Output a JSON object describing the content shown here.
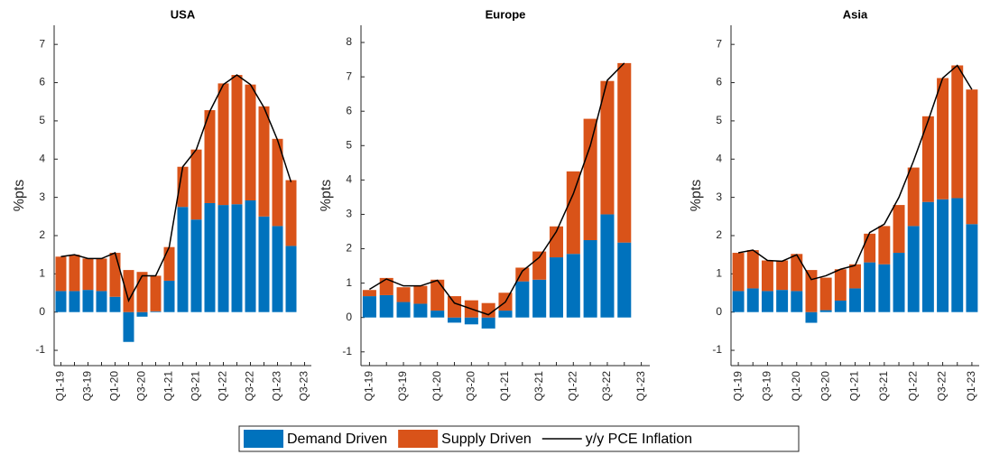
{
  "chart_data": [
    {
      "type": "bar",
      "stacked": true,
      "title": "USA",
      "y_label": "%pts",
      "categories": [
        "Q1-19",
        null,
        "Q3-19",
        null,
        "Q1-20",
        null,
        "Q3-20",
        null,
        "Q1-21",
        null,
        "Q3-21",
        null,
        "Q1-22",
        null,
        "Q3-22",
        null,
        "Q1-23",
        null,
        "Q3-23"
      ],
      "series": [
        {
          "name": "Demand Driven",
          "color": "#0072BD",
          "values": [
            0.55,
            0.55,
            0.58,
            0.55,
            0.4,
            -0.78,
            -0.12,
            0.02,
            0.82,
            2.75,
            2.42,
            2.85,
            2.8,
            2.82,
            2.92,
            2.5,
            2.25,
            1.73,
            null
          ]
        },
        {
          "name": "Supply Driven",
          "color": "#D95319",
          "values": [
            0.9,
            0.95,
            0.82,
            0.85,
            1.15,
            1.1,
            1.05,
            0.93,
            0.88,
            1.05,
            1.83,
            2.43,
            3.18,
            3.38,
            3.03,
            2.88,
            2.28,
            1.72,
            null
          ]
        },
        {
          "name": "y/y PCE Inflation",
          "color": "#000000",
          "type": "line",
          "values": [
            1.45,
            1.5,
            1.4,
            1.4,
            1.55,
            0.3,
            0.95,
            0.95,
            1.7,
            3.8,
            4.25,
            5.25,
            5.95,
            6.2,
            5.95,
            5.35,
            4.5,
            3.4,
            null
          ]
        }
      ],
      "ylim": [
        -1.4,
        7.5
      ],
      "yticks": [
        -1,
        0,
        1,
        2,
        3,
        4,
        5,
        6,
        7
      ]
    },
    {
      "type": "bar",
      "stacked": true,
      "title": "Europe",
      "y_label": "%pts",
      "categories": [
        "Q1-19",
        null,
        "Q3-19",
        null,
        "Q1-20",
        null,
        "Q3-20",
        null,
        "Q1-21",
        null,
        "Q3-21",
        null,
        "Q1-22",
        null,
        "Q3-22",
        null,
        "Q1-23"
      ],
      "series": [
        {
          "name": "Demand Driven",
          "color": "#0072BD",
          "values": [
            0.62,
            0.65,
            0.45,
            0.4,
            0.2,
            -0.15,
            -0.2,
            -0.32,
            0.2,
            1.05,
            1.1,
            1.75,
            1.85,
            2.25,
            3.0,
            2.18,
            null
          ]
        },
        {
          "name": "Supply Driven",
          "color": "#D95319",
          "values": [
            0.18,
            0.5,
            0.43,
            0.52,
            0.9,
            0.62,
            0.5,
            0.42,
            0.52,
            0.4,
            0.82,
            0.9,
            2.4,
            3.53,
            3.88,
            5.22,
            null
          ]
        },
        {
          "name": "y/y PCE Inflation",
          "color": "#000000",
          "type": "line",
          "values": [
            0.82,
            1.12,
            0.92,
            0.92,
            1.08,
            0.42,
            0.25,
            0.08,
            0.45,
            1.35,
            1.75,
            2.5,
            3.6,
            5.0,
            6.9,
            7.4,
            null
          ]
        }
      ],
      "ylim": [
        -1.4,
        8.5
      ],
      "yticks": [
        -1,
        0,
        1,
        2,
        3,
        4,
        5,
        6,
        7,
        8
      ]
    },
    {
      "type": "bar",
      "stacked": true,
      "title": "Asia",
      "y_label": "%pts",
      "categories": [
        "Q1-19",
        null,
        "Q3-19",
        null,
        "Q1-20",
        null,
        "Q3-20",
        null,
        "Q1-21",
        null,
        "Q3-21",
        null,
        "Q1-22",
        null,
        "Q3-22",
        null,
        "Q1-23"
      ],
      "series": [
        {
          "name": "Demand Driven",
          "color": "#0072BD",
          "values": [
            0.55,
            0.62,
            0.55,
            0.58,
            0.55,
            -0.28,
            0.05,
            0.3,
            0.62,
            1.3,
            1.25,
            1.55,
            2.25,
            2.88,
            2.95,
            2.98,
            2.3
          ]
        },
        {
          "name": "Supply Driven",
          "color": "#D95319",
          "values": [
            1.0,
            1.0,
            0.8,
            0.77,
            0.97,
            1.1,
            0.85,
            0.82,
            0.63,
            0.75,
            1.0,
            1.25,
            1.53,
            2.24,
            3.17,
            3.47,
            3.52
          ]
        },
        {
          "name": "y/y PCE Inflation",
          "color": "#000000",
          "type": "line",
          "values": [
            1.55,
            1.62,
            1.35,
            1.33,
            1.5,
            0.85,
            0.95,
            1.12,
            1.22,
            2.08,
            2.3,
            3.0,
            3.95,
            5.0,
            6.12,
            6.45,
            5.82
          ]
        }
      ],
      "ylim": [
        -1.4,
        7.5
      ],
      "yticks": [
        -1,
        0,
        1,
        2,
        3,
        4,
        5,
        6,
        7
      ]
    }
  ]
}
